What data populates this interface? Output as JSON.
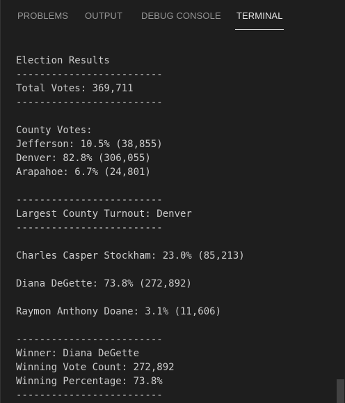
{
  "tabs": [
    {
      "label": "PROBLEMS"
    },
    {
      "label": "OUTPUT"
    },
    {
      "label": "DEBUG CONSOLE"
    },
    {
      "label": "TERMINAL"
    }
  ],
  "active_tab": "TERMINAL",
  "terminal": {
    "lines": [
      "Election Results",
      "-------------------------",
      "Total Votes: 369,711",
      "-------------------------",
      "",
      "County Votes:",
      "Jefferson: 10.5% (38,855)",
      "Denver: 82.8% (306,055)",
      "Arapahoe: 6.7% (24,801)",
      "",
      "-------------------------",
      "Largest County Turnout: Denver",
      "-------------------------",
      "",
      "Charles Casper Stockham: 23.0% (85,213)",
      "",
      "Diana DeGette: 73.8% (272,892)",
      "",
      "Raymon Anthony Doane: 3.1% (11,606)",
      "",
      "-------------------------",
      "Winner: Diana DeGette",
      "Winning Vote Count: 272,892",
      "Winning Percentage: 73.8%",
      "-------------------------"
    ]
  },
  "colors": {
    "background": "#1e1e1e",
    "text": "#cccccc",
    "tab_inactive": "#969696",
    "tab_active": "#e7e7e7"
  }
}
